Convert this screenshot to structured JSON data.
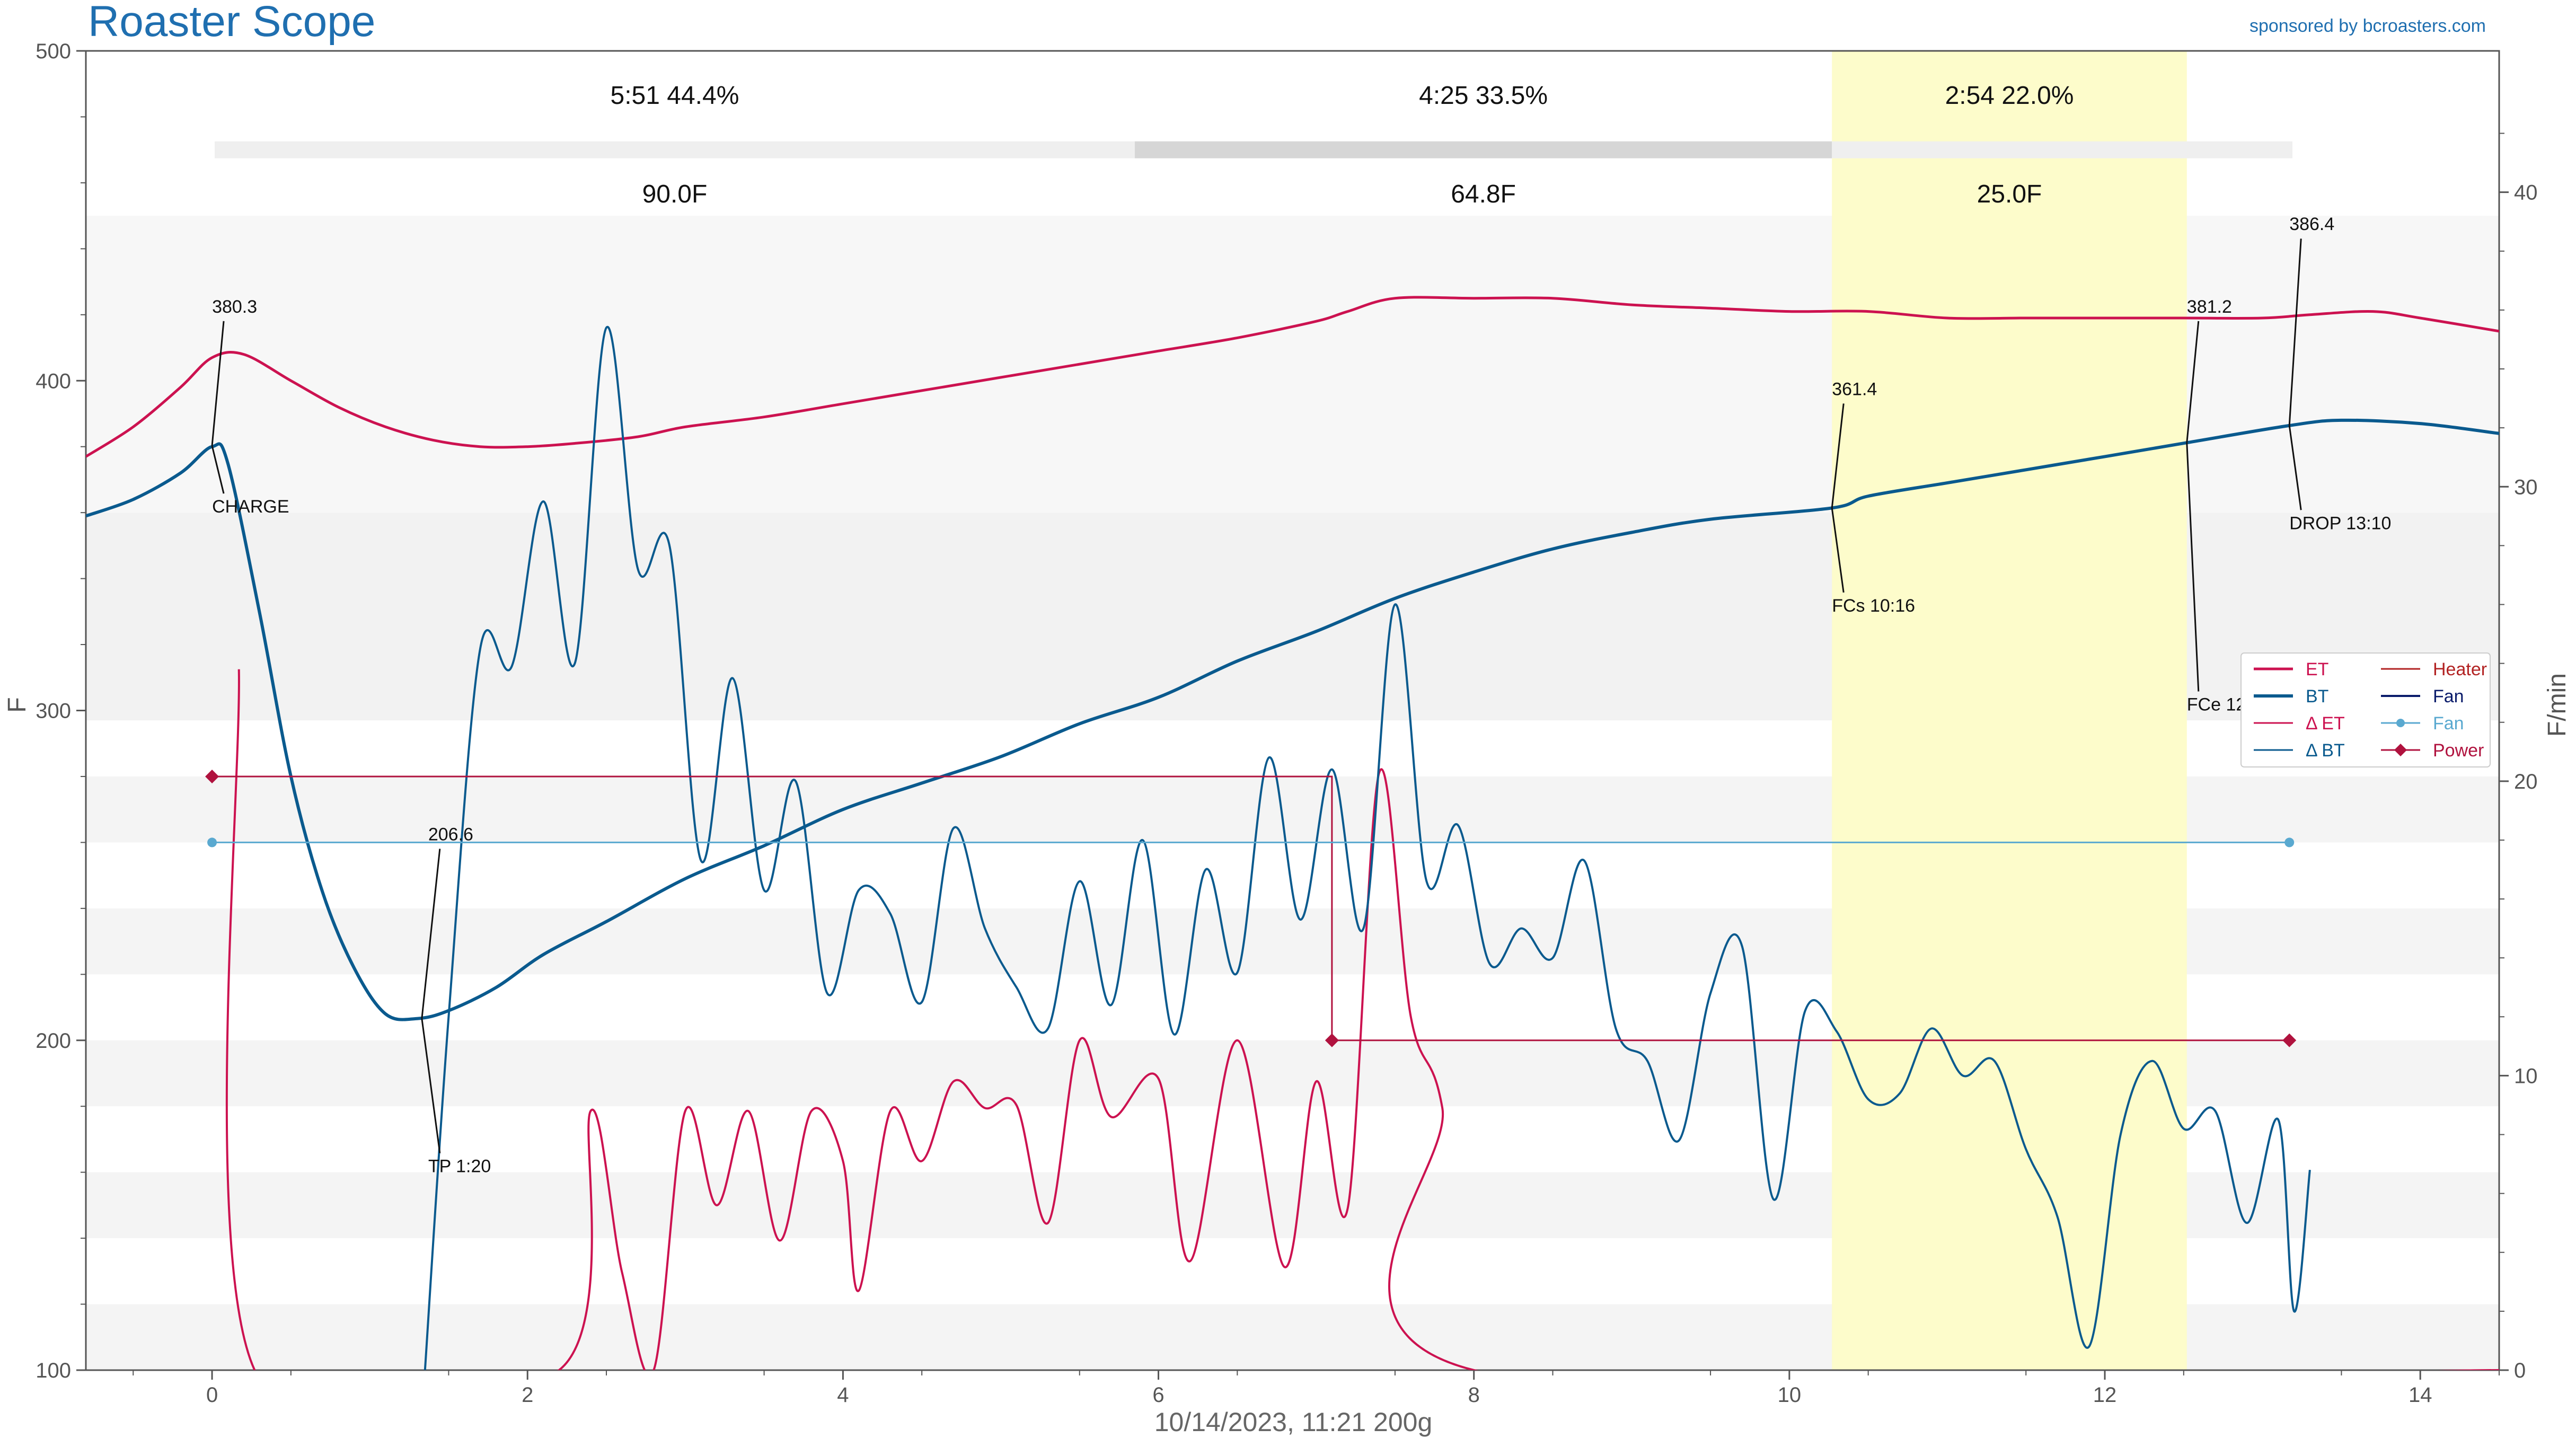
{
  "app": {
    "title": "Roaster Scope",
    "sponsor": "sponsored by bcroasters.com"
  },
  "footer": {
    "caption": "10/14/2023, 11:21   200g"
  },
  "phases": [
    {
      "time_pct": "5:51  44.4%",
      "delta": "90.0F"
    },
    {
      "time_pct": "4:25  33.5%",
      "delta": "64.8F"
    },
    {
      "time_pct": "2:54  22.0%",
      "delta": "25.0F"
    }
  ],
  "colors": {
    "et": "#cc1250",
    "bt": "#0a5a8e",
    "fan_line": "#5aa9d0",
    "power": "#b0123e",
    "heater": "#b22222",
    "fan_legend": "#0b1c6b",
    "highlight": "#fdfccb",
    "bg_band": "#f2f2f2"
  },
  "chart_data": {
    "type": "line",
    "title": "Roaster Scope",
    "xlabel": "10/14/2023, 11:21   200g",
    "ylabel": "F",
    "ylabel_right": "F/min",
    "xlim": [
      -0.8,
      14.5
    ],
    "ylim": [
      100,
      500
    ],
    "ylim_right": [
      0,
      44.8
    ],
    "x_ticks": [
      0,
      2,
      4,
      6,
      8,
      10,
      12,
      14
    ],
    "y_ticks": [
      100,
      200,
      300,
      400,
      500
    ],
    "y_right_ticks": [
      0,
      10,
      20,
      30,
      40
    ],
    "grid": false,
    "legend_position": "right",
    "legend": [
      "ET",
      "BT",
      "Δ ET",
      "Δ BT",
      "Heater",
      "Fan",
      "Fan",
      "Power"
    ],
    "phase_bar": {
      "ranges": [
        [
          0,
          5.85
        ],
        [
          5.85,
          10.27
        ],
        [
          10.27,
          13.17
        ]
      ]
    },
    "highlight": [
      10.27,
      12.52
    ],
    "series": [
      {
        "name": "ET",
        "axis": "left",
        "points": [
          [
            -0.8,
            377
          ],
          [
            -0.5,
            386
          ],
          [
            -0.2,
            398
          ],
          [
            0,
            407
          ],
          [
            0.2,
            408
          ],
          [
            0.5,
            400
          ],
          [
            0.8,
            392
          ],
          [
            1.1,
            386
          ],
          [
            1.4,
            382
          ],
          [
            1.7,
            380
          ],
          [
            2,
            380
          ],
          [
            2.3,
            381
          ],
          [
            2.7,
            383
          ],
          [
            3.0,
            386
          ],
          [
            3.5,
            389
          ],
          [
            4,
            393
          ],
          [
            4.5,
            397
          ],
          [
            5,
            401
          ],
          [
            5.5,
            405
          ],
          [
            6,
            409
          ],
          [
            6.5,
            413
          ],
          [
            7,
            418
          ],
          [
            7.2,
            421
          ],
          [
            7.5,
            425
          ],
          [
            8,
            425
          ],
          [
            8.5,
            425
          ],
          [
            9,
            423
          ],
          [
            9.5,
            422
          ],
          [
            10,
            421
          ],
          [
            10.5,
            421
          ],
          [
            11,
            419
          ],
          [
            11.5,
            419
          ],
          [
            12,
            419
          ],
          [
            12.5,
            419
          ],
          [
            13,
            419
          ],
          [
            13.3,
            420
          ],
          [
            13.7,
            421
          ],
          [
            14,
            419
          ],
          [
            14.5,
            415
          ]
        ]
      },
      {
        "name": "BT",
        "axis": "left",
        "points": [
          [
            -0.8,
            359
          ],
          [
            -0.5,
            364
          ],
          [
            -0.2,
            372
          ],
          [
            0,
            380
          ],
          [
            0.1,
            375
          ],
          [
            0.3,
            330
          ],
          [
            0.5,
            280
          ],
          [
            0.7,
            245
          ],
          [
            0.9,
            222
          ],
          [
            1.1,
            208
          ],
          [
            1.3,
            206.6
          ],
          [
            1.5,
            209
          ],
          [
            1.8,
            216
          ],
          [
            2.1,
            226
          ],
          [
            2.5,
            236
          ],
          [
            3,
            249
          ],
          [
            3.5,
            259
          ],
          [
            4,
            270
          ],
          [
            4.5,
            278
          ],
          [
            5,
            286
          ],
          [
            5.5,
            296
          ],
          [
            6,
            304
          ],
          [
            6.5,
            315
          ],
          [
            7,
            324
          ],
          [
            7.5,
            334
          ],
          [
            8,
            342
          ],
          [
            8.5,
            349
          ],
          [
            9,
            354
          ],
          [
            9.5,
            358
          ],
          [
            10.27,
            361.4
          ],
          [
            10.5,
            365
          ],
          [
            11,
            369
          ],
          [
            11.5,
            373
          ],
          [
            12,
            377
          ],
          [
            12.52,
            381.2
          ],
          [
            13.17,
            386.4
          ],
          [
            13.5,
            388
          ],
          [
            14,
            387
          ],
          [
            14.5,
            384
          ]
        ]
      },
      {
        "name": "Δ ET",
        "axis": "right",
        "points": [
          [
            0.17,
            23.8
          ],
          [
            0.27,
            0
          ],
          [
            2.2,
            0
          ],
          [
            2.4,
            8.8
          ],
          [
            2.6,
            3.3
          ],
          [
            2.8,
            0
          ],
          [
            3.0,
            8.8
          ],
          [
            3.2,
            5.6
          ],
          [
            3.4,
            8.8
          ],
          [
            3.6,
            4.4
          ],
          [
            3.8,
            8.8
          ],
          [
            4.0,
            7.1
          ],
          [
            4.1,
            2.7
          ],
          [
            4.3,
            8.8
          ],
          [
            4.5,
            7.1
          ],
          [
            4.7,
            9.8
          ],
          [
            4.9,
            8.9
          ],
          [
            5.1,
            9.0
          ],
          [
            5.3,
            5.0
          ],
          [
            5.5,
            11.2
          ],
          [
            5.7,
            8.6
          ],
          [
            6,
            9.9
          ],
          [
            6.2,
            3.7
          ],
          [
            6.5,
            11.2
          ],
          [
            6.8,
            3.5
          ],
          [
            7.0,
            9.8
          ],
          [
            7.2,
            5.5
          ],
          [
            7.4,
            20.3
          ],
          [
            7.6,
            12.0
          ],
          [
            7.8,
            8.9
          ],
          [
            8.0,
            0
          ],
          [
            14.5,
            0
          ]
        ]
      },
      {
        "name": "Δ BT",
        "axis": "right",
        "points": [
          [
            1.35,
            0
          ],
          [
            1.5,
            12
          ],
          [
            1.7,
            24.5
          ],
          [
            1.9,
            23.9
          ],
          [
            2.1,
            29.5
          ],
          [
            2.3,
            24.0
          ],
          [
            2.5,
            35.4
          ],
          [
            2.7,
            27.2
          ],
          [
            2.9,
            28.0
          ],
          [
            3.1,
            17.3
          ],
          [
            3.3,
            23.5
          ],
          [
            3.5,
            16.3
          ],
          [
            3.7,
            20.0
          ],
          [
            3.9,
            12.8
          ],
          [
            4.1,
            16.3
          ],
          [
            4.3,
            15.5
          ],
          [
            4.5,
            12.5
          ],
          [
            4.7,
            18.4
          ],
          [
            4.9,
            15.0
          ],
          [
            5.1,
            13.0
          ],
          [
            5.3,
            11.6
          ],
          [
            5.5,
            16.6
          ],
          [
            5.7,
            12.4
          ],
          [
            5.9,
            18.0
          ],
          [
            6.1,
            11.4
          ],
          [
            6.3,
            17.0
          ],
          [
            6.5,
            13.5
          ],
          [
            6.7,
            20.8
          ],
          [
            6.9,
            15.3
          ],
          [
            7.1,
            20.4
          ],
          [
            7.3,
            15.0
          ],
          [
            7.5,
            26.0
          ],
          [
            7.7,
            16.6
          ],
          [
            7.9,
            18.5
          ],
          [
            8.1,
            13.8
          ],
          [
            8.3,
            15.0
          ],
          [
            8.5,
            14.0
          ],
          [
            8.7,
            17.3
          ],
          [
            8.9,
            11.6
          ],
          [
            9.1,
            10.5
          ],
          [
            9.3,
            7.8
          ],
          [
            9.5,
            12.8
          ],
          [
            9.7,
            14.4
          ],
          [
            9.9,
            5.8
          ],
          [
            10.1,
            12.2
          ],
          [
            10.3,
            11.5
          ],
          [
            10.5,
            9.2
          ],
          [
            10.7,
            9.4
          ],
          [
            10.9,
            11.6
          ],
          [
            11.1,
            10.0
          ],
          [
            11.3,
            10.5
          ],
          [
            11.5,
            7.5
          ],
          [
            11.7,
            5.2
          ],
          [
            11.9,
            0.8
          ],
          [
            12.1,
            8.0
          ],
          [
            12.3,
            10.5
          ],
          [
            12.5,
            8.2
          ],
          [
            12.7,
            8.8
          ],
          [
            12.9,
            5.0
          ],
          [
            13.1,
            8.5
          ],
          [
            13.2,
            2.0
          ],
          [
            13.3,
            6.8
          ]
        ]
      },
      {
        "name": "Power",
        "axis": "left",
        "steps": [
          [
            0,
            280
          ],
          [
            7.1,
            280
          ],
          [
            7.1,
            200
          ],
          [
            13.17,
            200
          ]
        ],
        "markers": [
          [
            0,
            280
          ],
          [
            7.1,
            200
          ],
          [
            13.17,
            200
          ]
        ]
      },
      {
        "name": "Fan",
        "axis": "left",
        "points": [
          [
            0,
            260
          ],
          [
            13.17,
            260
          ]
        ]
      }
    ],
    "annotations": [
      {
        "x": 0,
        "y": 380.3,
        "value": "380.3",
        "event": "CHARGE"
      },
      {
        "x": 1.33,
        "y": 206.6,
        "value": "206.6",
        "event": "TP 1:20"
      },
      {
        "x": 10.27,
        "y": 361.4,
        "value": "361.4",
        "event": "FCs 10:16"
      },
      {
        "x": 12.52,
        "y": 381.2,
        "value": "381.2",
        "event": "FCe 12:31"
      },
      {
        "x": 13.17,
        "y": 386.4,
        "value": "386.4",
        "event": "DROP 13:10"
      }
    ]
  }
}
